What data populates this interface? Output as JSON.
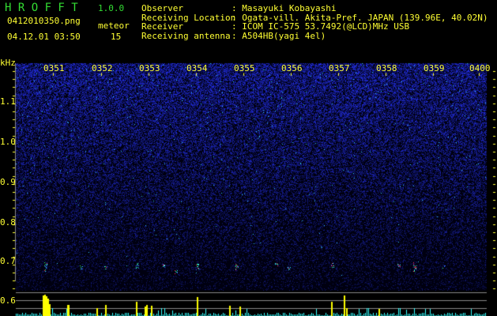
{
  "app": {
    "title_letters": "H R O F F T",
    "version": "1.0.0"
  },
  "file": {
    "name": "0412010350.png",
    "datetime": "04.12.01 03:50"
  },
  "meteor": {
    "label": "meteor",
    "count": "15"
  },
  "info": [
    {
      "label": "Observer",
      "value": ": Masayuki Kobayashi"
    },
    {
      "label": "Receiving Location",
      "value": ": Ogata-vill. Akita-Pref. JAPAN (139.96E, 40.02N)"
    },
    {
      "label": "Receiver",
      "value": ": ICOM IC-575 53.7492(@LCD)MHz USB"
    },
    {
      "label": "Receiving antenna",
      "value": ": A504HB(yagi 4el)"
    }
  ],
  "axis": {
    "y_unit": "kHz",
    "y_ticks": [
      "1.1",
      "1.0",
      "0.9",
      "0.8",
      "0.7",
      "0.6"
    ],
    "x_ticks": [
      "0351",
      "0352",
      "0353",
      "0354",
      "0355",
      "0356",
      "0357",
      "0358",
      "0359",
      "0400"
    ]
  },
  "colors": {
    "text": "#ffff33",
    "title": "#33dd33",
    "noise": "#2233cc",
    "count_bar": "#33ffff",
    "meteor_bar": "#ffff00"
  }
}
